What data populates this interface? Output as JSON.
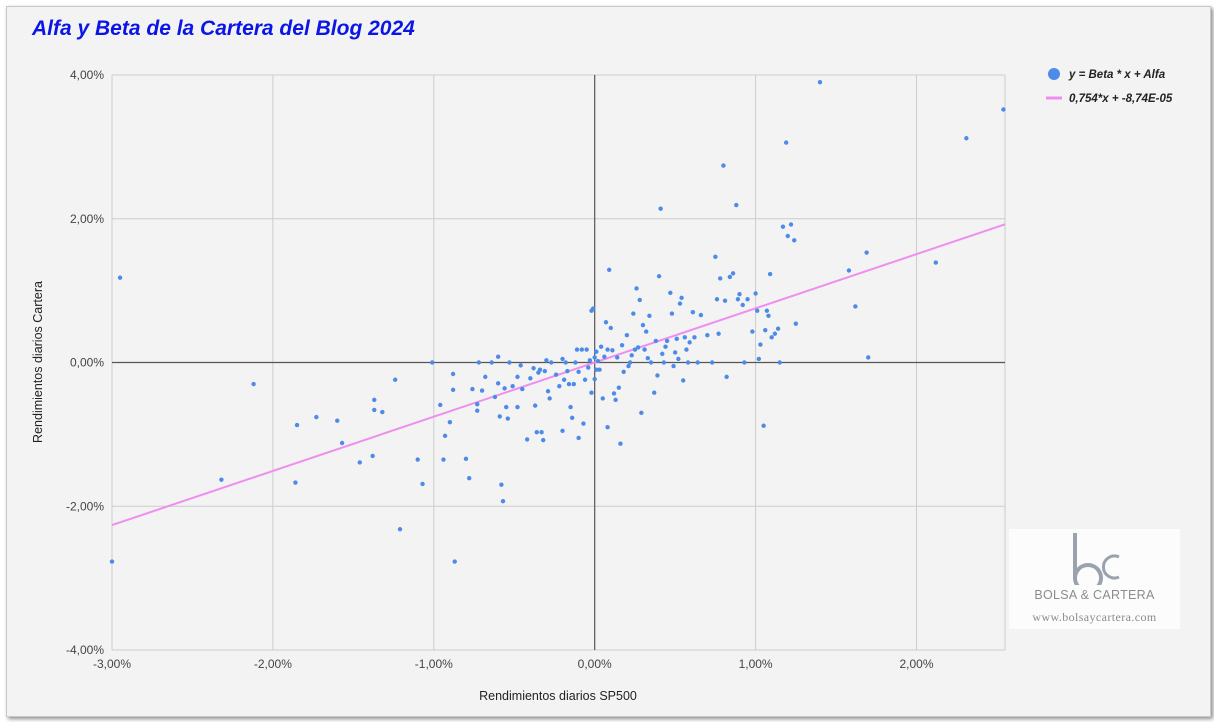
{
  "title": "Alfa y Beta de la Cartera del Blog 2024",
  "watermark": {
    "brand": "BOLSA & CARTERA",
    "url": "www.bolsaycartera.com",
    "logo_letters": "bc"
  },
  "chart_data": {
    "type": "scatter",
    "title": "Alfa y Beta de la Cartera del Blog 2024",
    "xlabel": "Rendimientos diarios SP500",
    "ylabel": "Rendimientos diarios Cartera",
    "xlim": [
      -3.0,
      2.55
    ],
    "ylim": [
      -4.0,
      4.0
    ],
    "x_ticks": [
      -3,
      -2,
      -1,
      0,
      1,
      2
    ],
    "y_ticks": [
      -4,
      -2,
      0,
      2,
      4
    ],
    "x_tick_labels": [
      "-3,00%",
      "-2,00%",
      "-1,00%",
      "0,00%",
      "1,00%",
      "2,00%"
    ],
    "y_tick_labels": [
      "-4,00%",
      "-2,00%",
      "0,00%",
      "2,00%",
      "4,00%"
    ],
    "grid": true,
    "legend_position": "right",
    "colors": {
      "points": "#4d8be8",
      "trendline": "#f08ef0",
      "title": "#0b16e6"
    },
    "series": [
      {
        "name": "y = Beta * x + Alfa",
        "points": [
          [
            -2.95,
            1.18
          ],
          [
            -3.0,
            -2.77
          ],
          [
            -2.12,
            -0.3
          ],
          [
            -2.32,
            -1.63
          ],
          [
            -1.85,
            -0.87
          ],
          [
            -1.86,
            -1.67
          ],
          [
            -1.73,
            -0.76
          ],
          [
            -1.6,
            -0.81
          ],
          [
            -1.57,
            -1.12
          ],
          [
            -1.46,
            -1.39
          ],
          [
            -1.37,
            -0.52
          ],
          [
            -1.37,
            -0.66
          ],
          [
            -1.38,
            -1.3
          ],
          [
            -1.32,
            -0.69
          ],
          [
            -1.24,
            -0.24
          ],
          [
            -1.21,
            -2.32
          ],
          [
            -1.1,
            -1.35
          ],
          [
            -1.07,
            -1.69
          ],
          [
            -1.01,
            0.0
          ],
          [
            -0.96,
            -0.59
          ],
          [
            -0.94,
            -1.35
          ],
          [
            -0.93,
            -1.02
          ],
          [
            -0.9,
            -0.83
          ],
          [
            -0.88,
            -0.38
          ],
          [
            -0.88,
            -0.16
          ],
          [
            -0.87,
            -2.77
          ],
          [
            -0.8,
            -1.34
          ],
          [
            -0.78,
            -1.61
          ],
          [
            -0.76,
            -0.37
          ],
          [
            -0.73,
            -0.58
          ],
          [
            -0.73,
            -0.67
          ],
          [
            -0.7,
            -0.39
          ],
          [
            -0.72,
            0.0
          ],
          [
            -0.68,
            -0.2
          ],
          [
            -0.64,
            0.0
          ],
          [
            -0.62,
            -0.48
          ],
          [
            -0.6,
            -0.29
          ],
          [
            -0.6,
            0.08
          ],
          [
            -0.59,
            -0.75
          ],
          [
            -0.58,
            -1.7
          ],
          [
            -0.57,
            -1.93
          ],
          [
            -0.56,
            -0.36
          ],
          [
            -0.55,
            -0.62
          ],
          [
            -0.54,
            -0.78
          ],
          [
            -0.53,
            0.0
          ],
          [
            -0.51,
            -0.33
          ],
          [
            -0.48,
            -0.2
          ],
          [
            -0.48,
            -0.62
          ],
          [
            -0.46,
            -0.04
          ],
          [
            -0.45,
            -0.37
          ],
          [
            -0.42,
            -1.07
          ],
          [
            -0.4,
            -0.22
          ],
          [
            -0.38,
            -0.08
          ],
          [
            -0.37,
            -0.6
          ],
          [
            -0.36,
            -0.97
          ],
          [
            -0.35,
            -0.14
          ],
          [
            -0.34,
            -0.1
          ],
          [
            -0.33,
            -0.97
          ],
          [
            -0.32,
            -1.08
          ],
          [
            -0.3,
            0.03
          ],
          [
            -0.31,
            -0.12
          ],
          [
            -0.29,
            -0.4
          ],
          [
            -0.28,
            -0.5
          ],
          [
            -0.27,
            0.0
          ],
          [
            -0.24,
            -0.17
          ],
          [
            -0.22,
            -0.33
          ],
          [
            -0.2,
            0.05
          ],
          [
            -0.2,
            -0.95
          ],
          [
            -0.19,
            -0.24
          ],
          [
            -0.18,
            0.0
          ],
          [
            -0.17,
            -0.12
          ],
          [
            -0.16,
            -0.3
          ],
          [
            -0.15,
            -0.62
          ],
          [
            -0.14,
            -0.77
          ],
          [
            -0.13,
            -0.3
          ],
          [
            -0.12,
            0.0
          ],
          [
            -0.11,
            0.18
          ],
          [
            -0.1,
            -1.05
          ],
          [
            -0.1,
            -0.13
          ],
          [
            -0.08,
            0.18
          ],
          [
            -0.07,
            -0.85
          ],
          [
            -0.06,
            -0.24
          ],
          [
            -0.05,
            0.18
          ],
          [
            -0.04,
            -0.07
          ],
          [
            -0.03,
            0.03
          ],
          [
            -0.02,
            -0.42
          ],
          [
            -0.02,
            0.72
          ],
          [
            -0.01,
            0.75
          ],
          [
            0.0,
            0.07
          ],
          [
            0.0,
            -0.23
          ],
          [
            0.01,
            -0.1
          ],
          [
            0.01,
            0.15
          ],
          [
            0.02,
            0.02
          ],
          [
            0.03,
            -0.1
          ],
          [
            0.04,
            0.22
          ],
          [
            0.05,
            -0.5
          ],
          [
            0.06,
            0.08
          ],
          [
            0.07,
            0.56
          ],
          [
            0.08,
            0.18
          ],
          [
            0.08,
            -0.9
          ],
          [
            0.09,
            1.29
          ],
          [
            0.1,
            0.48
          ],
          [
            0.11,
            0.17
          ],
          [
            0.12,
            -0.43
          ],
          [
            0.13,
            -0.52
          ],
          [
            0.14,
            0.07
          ],
          [
            0.15,
            -0.35
          ],
          [
            0.16,
            -1.13
          ],
          [
            0.17,
            0.24
          ],
          [
            0.18,
            -0.13
          ],
          [
            0.2,
            0.38
          ],
          [
            0.21,
            -0.05
          ],
          [
            0.22,
            0.0
          ],
          [
            0.23,
            0.1
          ],
          [
            0.24,
            0.68
          ],
          [
            0.25,
            0.18
          ],
          [
            0.26,
            1.03
          ],
          [
            0.27,
            0.21
          ],
          [
            0.28,
            0.87
          ],
          [
            0.29,
            -0.7
          ],
          [
            0.3,
            0.52
          ],
          [
            0.31,
            0.18
          ],
          [
            0.32,
            0.43
          ],
          [
            0.33,
            0.06
          ],
          [
            0.34,
            0.65
          ],
          [
            0.35,
            0.0
          ],
          [
            0.37,
            -0.42
          ],
          [
            0.38,
            0.3
          ],
          [
            0.39,
            -0.18
          ],
          [
            0.4,
            1.2
          ],
          [
            0.41,
            2.14
          ],
          [
            0.42,
            0.12
          ],
          [
            0.43,
            0.0
          ],
          [
            0.44,
            0.22
          ],
          [
            0.45,
            0.3
          ],
          [
            0.47,
            0.97
          ],
          [
            0.48,
            0.68
          ],
          [
            0.49,
            -0.05
          ],
          [
            0.5,
            0.14
          ],
          [
            0.51,
            0.33
          ],
          [
            0.52,
            0.05
          ],
          [
            0.53,
            0.82
          ],
          [
            0.54,
            0.9
          ],
          [
            0.55,
            -0.25
          ],
          [
            0.56,
            0.35
          ],
          [
            0.57,
            0.18
          ],
          [
            0.58,
            0.0
          ],
          [
            0.59,
            0.28
          ],
          [
            0.61,
            0.7
          ],
          [
            0.62,
            0.35
          ],
          [
            0.64,
            0.0
          ],
          [
            0.66,
            0.66
          ],
          [
            0.7,
            0.38
          ],
          [
            0.73,
            0.0
          ],
          [
            0.75,
            1.47
          ],
          [
            0.76,
            0.88
          ],
          [
            0.77,
            0.4
          ],
          [
            0.78,
            1.17
          ],
          [
            0.8,
            2.74
          ],
          [
            0.81,
            0.86
          ],
          [
            0.82,
            -0.2
          ],
          [
            0.84,
            1.19
          ],
          [
            0.86,
            1.24
          ],
          [
            0.88,
            2.19
          ],
          [
            0.89,
            0.88
          ],
          [
            0.9,
            0.95
          ],
          [
            0.92,
            0.8
          ],
          [
            0.93,
            0.0
          ],
          [
            0.95,
            0.88
          ],
          [
            0.98,
            0.43
          ],
          [
            1.0,
            0.96
          ],
          [
            1.01,
            0.72
          ],
          [
            1.02,
            0.05
          ],
          [
            1.03,
            0.25
          ],
          [
            1.05,
            -0.88
          ],
          [
            1.06,
            0.45
          ],
          [
            1.07,
            0.72
          ],
          [
            1.08,
            0.65
          ],
          [
            1.09,
            1.23
          ],
          [
            1.1,
            0.35
          ],
          [
            1.12,
            0.4
          ],
          [
            1.14,
            0.47
          ],
          [
            1.15,
            0.0
          ],
          [
            1.17,
            1.89
          ],
          [
            1.19,
            3.06
          ],
          [
            1.2,
            1.76
          ],
          [
            1.22,
            1.92
          ],
          [
            1.24,
            1.7
          ],
          [
            1.25,
            0.54
          ],
          [
            1.4,
            3.9
          ],
          [
            1.58,
            1.28
          ],
          [
            1.62,
            0.78
          ],
          [
            1.69,
            1.53
          ],
          [
            1.7,
            0.07
          ],
          [
            2.12,
            1.39
          ],
          [
            2.31,
            3.12
          ],
          [
            2.54,
            3.52
          ]
        ]
      },
      {
        "name": "0,754*x + -8,74E-05",
        "type": "trendline",
        "slope": 0.754,
        "intercept": -8.74e-05
      }
    ]
  }
}
